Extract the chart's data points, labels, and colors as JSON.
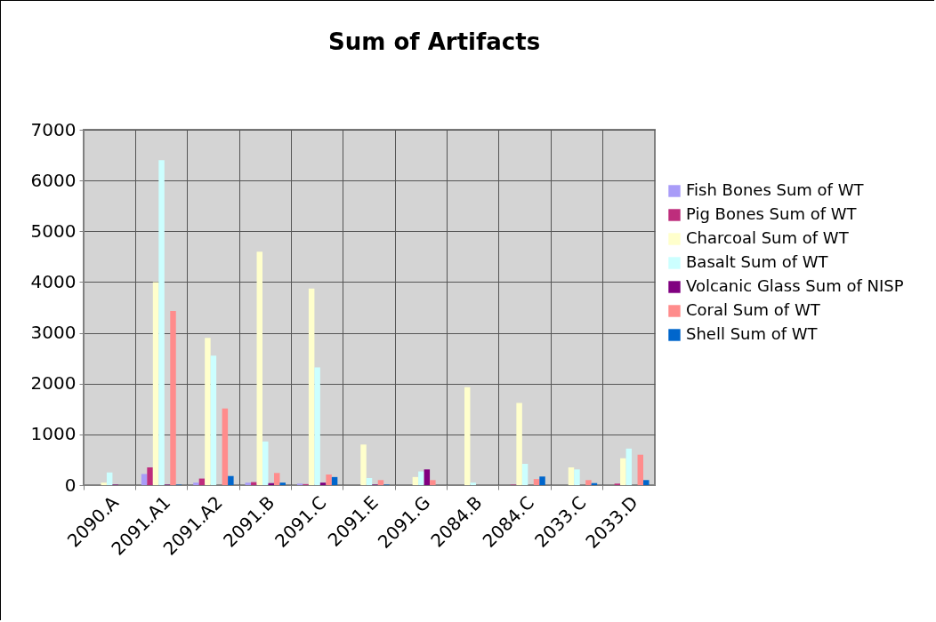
{
  "chart_data": {
    "type": "bar",
    "title": "Sum of Artifacts",
    "categories": [
      "2090.A",
      "2091.A1",
      "2091.A2",
      "2091.B",
      "2091.C",
      "2091.E",
      "2091.G",
      "2084.B",
      "2084.C",
      "2033.C",
      "2033.D"
    ],
    "series": [
      {
        "name": "Fish Bones Sum of WT",
        "color": "#a99cf8",
        "values": [
          0,
          220,
          50,
          50,
          30,
          0,
          0,
          0,
          0,
          0,
          0
        ]
      },
      {
        "name": "Pig Bones Sum of WT",
        "color": "#be2d7c",
        "values": [
          0,
          350,
          130,
          60,
          20,
          0,
          0,
          0,
          10,
          0,
          30
        ]
      },
      {
        "name": "Charcoal Sum of WT",
        "color": "#ffffcc",
        "values": [
          50,
          4000,
          2900,
          4600,
          3870,
          800,
          160,
          1930,
          1620,
          350,
          530
        ]
      },
      {
        "name": "Basalt Sum of WT",
        "color": "#ccffff",
        "values": [
          250,
          6400,
          2550,
          860,
          2320,
          140,
          270,
          50,
          420,
          310,
          720
        ]
      },
      {
        "name": "Volcanic Glass Sum of NISP",
        "color": "#800080",
        "values": [
          10,
          10,
          0,
          40,
          50,
          10,
          310,
          0,
          0,
          0,
          0
        ]
      },
      {
        "name": "Coral Sum of WT",
        "color": "#ff8c8c",
        "values": [
          0,
          3430,
          1510,
          240,
          210,
          100,
          100,
          0,
          120,
          100,
          600
        ]
      },
      {
        "name": "Shell Sum of WT",
        "color": "#0066cc",
        "values": [
          0,
          10,
          180,
          50,
          160,
          10,
          0,
          0,
          170,
          40,
          100
        ]
      }
    ],
    "ylim": [
      0,
      7000
    ],
    "yticks": [
      0,
      1000,
      2000,
      3000,
      4000,
      5000,
      6000,
      7000
    ],
    "grid": true,
    "legend": "right"
  }
}
